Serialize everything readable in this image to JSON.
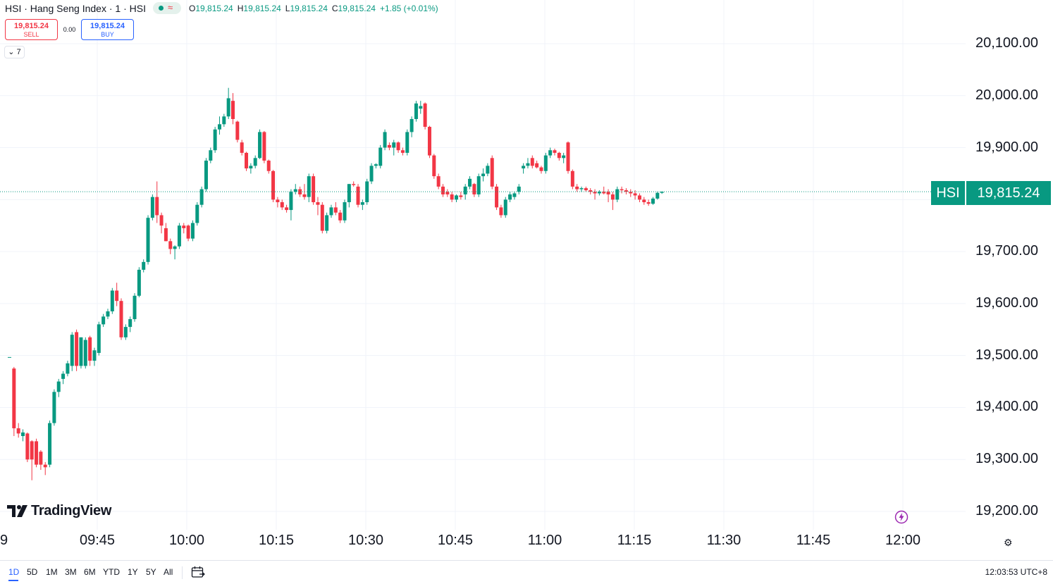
{
  "header": {
    "title": "HSI · Hang Seng Index · 1 · HSI",
    "status_approx": "≈",
    "ohlc": [
      {
        "key": "O",
        "value": "19,815.24"
      },
      {
        "key": "H",
        "value": "19,815.24"
      },
      {
        "key": "L",
        "value": "19,815.24"
      },
      {
        "key": "C",
        "value": "19,815.24"
      },
      {
        "key": "",
        "value": "+1.85 (+0.01%)"
      }
    ]
  },
  "trade": {
    "sell_price": "19,815.24",
    "sell_label": "SELL",
    "spread": "0.00",
    "buy_price": "19,815.24",
    "buy_label": "BUY"
  },
  "collapse_count": "7",
  "price_axis": [
    "20,100.00",
    "20,000.00",
    "19,900.00",
    "19,700.00",
    "19,600.00",
    "19,500.00",
    "19,400.00",
    "19,300.00",
    "19,200.00"
  ],
  "badge": {
    "symbol": "HSI",
    "value": "19,815.24"
  },
  "time_axis": [
    "09:45",
    "10:00",
    "10:15",
    "10:30",
    "10:45",
    "11:00",
    "11:15",
    "11:30",
    "11:45",
    "12:00"
  ],
  "partial_date": "9",
  "range_buttons": [
    "1D",
    "5D",
    "1M",
    "3M",
    "6M",
    "YTD",
    "1Y",
    "5Y",
    "All"
  ],
  "active_range": "1D",
  "clock": "12:03:53 UTC+8",
  "logo_text": "TradingView",
  "colors": {
    "up": "#089981",
    "down": "#f23645",
    "accent": "#2962ff"
  },
  "chart_data": {
    "type": "candlestick",
    "ylim": [
      19180,
      20130
    ],
    "x_start": "09:30",
    "x_end": "12:00",
    "last_price": 19815.24,
    "candles": [
      {
        "o": 19497,
        "h": 19497,
        "l": 19497,
        "c": 19497
      },
      {
        "o": 19475,
        "h": 19478,
        "l": 19345,
        "c": 19360
      },
      {
        "o": 19360,
        "h": 19370,
        "l": 19342,
        "c": 19350
      },
      {
        "o": 19345,
        "h": 19358,
        "l": 19335,
        "c": 19352
      },
      {
        "o": 19350,
        "h": 19352,
        "l": 19295,
        "c": 19300
      },
      {
        "o": 19335,
        "h": 19337,
        "l": 19260,
        "c": 19300
      },
      {
        "o": 19335,
        "h": 19340,
        "l": 19285,
        "c": 19290
      },
      {
        "o": 19315,
        "h": 19318,
        "l": 19280,
        "c": 19290
      },
      {
        "o": 19290,
        "h": 19295,
        "l": 19270,
        "c": 19285
      },
      {
        "o": 19290,
        "h": 19375,
        "l": 19285,
        "c": 19370
      },
      {
        "o": 19370,
        "h": 19435,
        "l": 19365,
        "c": 19430
      },
      {
        "o": 19430,
        "h": 19455,
        "l": 19420,
        "c": 19450
      },
      {
        "o": 19455,
        "h": 19470,
        "l": 19445,
        "c": 19465
      },
      {
        "o": 19465,
        "h": 19490,
        "l": 19460,
        "c": 19485
      },
      {
        "o": 19480,
        "h": 19545,
        "l": 19470,
        "c": 19540
      },
      {
        "o": 19545,
        "h": 19550,
        "l": 19470,
        "c": 19480
      },
      {
        "o": 19480,
        "h": 19535,
        "l": 19475,
        "c": 19535
      },
      {
        "o": 19480,
        "h": 19535,
        "l": 19475,
        "c": 19530
      },
      {
        "o": 19535,
        "h": 19538,
        "l": 19480,
        "c": 19490
      },
      {
        "o": 19490,
        "h": 19515,
        "l": 19480,
        "c": 19510
      },
      {
        "o": 19505,
        "h": 19565,
        "l": 19500,
        "c": 19560
      },
      {
        "o": 19560,
        "h": 19580,
        "l": 19555,
        "c": 19575
      },
      {
        "o": 19575,
        "h": 19590,
        "l": 19570,
        "c": 19585
      },
      {
        "o": 19585,
        "h": 19630,
        "l": 19580,
        "c": 19625
      },
      {
        "o": 19625,
        "h": 19640,
        "l": 19595,
        "c": 19605
      },
      {
        "o": 19605,
        "h": 19610,
        "l": 19530,
        "c": 19535
      },
      {
        "o": 19535,
        "h": 19560,
        "l": 19530,
        "c": 19555
      },
      {
        "o": 19555,
        "h": 19575,
        "l": 19545,
        "c": 19570
      },
      {
        "o": 19570,
        "h": 19620,
        "l": 19565,
        "c": 19615
      },
      {
        "o": 19615,
        "h": 19670,
        "l": 19612,
        "c": 19665
      },
      {
        "o": 19665,
        "h": 19685,
        "l": 19660,
        "c": 19680
      },
      {
        "o": 19680,
        "h": 19770,
        "l": 19675,
        "c": 19765
      },
      {
        "o": 19765,
        "h": 19810,
        "l": 19760,
        "c": 19805
      },
      {
        "o": 19805,
        "h": 19835,
        "l": 19755,
        "c": 19770
      },
      {
        "o": 19770,
        "h": 19775,
        "l": 19735,
        "c": 19750
      },
      {
        "o": 19745,
        "h": 19755,
        "l": 19720,
        "c": 19720
      },
      {
        "o": 19720,
        "h": 19725,
        "l": 19695,
        "c": 19705
      },
      {
        "o": 19705,
        "h": 19712,
        "l": 19685,
        "c": 19710
      },
      {
        "o": 19710,
        "h": 19755,
        "l": 19705,
        "c": 19750
      },
      {
        "o": 19750,
        "h": 19755,
        "l": 19735,
        "c": 19745
      },
      {
        "o": 19750,
        "h": 19752,
        "l": 19720,
        "c": 19725
      },
      {
        "o": 19725,
        "h": 19760,
        "l": 19720,
        "c": 19755
      },
      {
        "o": 19755,
        "h": 19795,
        "l": 19750,
        "c": 19790
      },
      {
        "o": 19790,
        "h": 19825,
        "l": 19785,
        "c": 19820
      },
      {
        "o": 19820,
        "h": 19880,
        "l": 19815,
        "c": 19875
      },
      {
        "o": 19875,
        "h": 19900,
        "l": 19870,
        "c": 19895
      },
      {
        "o": 19895,
        "h": 19940,
        "l": 19890,
        "c": 19935
      },
      {
        "o": 19935,
        "h": 19960,
        "l": 19925,
        "c": 19945
      },
      {
        "o": 19945,
        "h": 19965,
        "l": 19940,
        "c": 19960
      },
      {
        "o": 19960,
        "h": 20015,
        "l": 19955,
        "c": 19995
      },
      {
        "o": 19990,
        "h": 20005,
        "l": 19945,
        "c": 19955
      },
      {
        "o": 19950,
        "h": 19952,
        "l": 19910,
        "c": 19915
      },
      {
        "o": 19910,
        "h": 19915,
        "l": 19885,
        "c": 19890
      },
      {
        "o": 19890,
        "h": 19892,
        "l": 19855,
        "c": 19860
      },
      {
        "o": 19860,
        "h": 19870,
        "l": 19850,
        "c": 19865
      },
      {
        "o": 19865,
        "h": 19885,
        "l": 19860,
        "c": 19880
      },
      {
        "o": 19880,
        "h": 19935,
        "l": 19878,
        "c": 19930
      },
      {
        "o": 19930,
        "h": 19932,
        "l": 19870,
        "c": 19875
      },
      {
        "o": 19875,
        "h": 19877,
        "l": 19850,
        "c": 19855
      },
      {
        "o": 19855,
        "h": 19857,
        "l": 19795,
        "c": 19800
      },
      {
        "o": 19800,
        "h": 19805,
        "l": 19785,
        "c": 19795
      },
      {
        "o": 19795,
        "h": 19800,
        "l": 19780,
        "c": 19785
      },
      {
        "o": 19785,
        "h": 19790,
        "l": 19775,
        "c": 19780
      },
      {
        "o": 19780,
        "h": 19820,
        "l": 19760,
        "c": 19815
      },
      {
        "o": 19815,
        "h": 19830,
        "l": 19810,
        "c": 19820
      },
      {
        "o": 19820,
        "h": 19825,
        "l": 19805,
        "c": 19810
      },
      {
        "o": 19810,
        "h": 19830,
        "l": 19800,
        "c": 19805
      },
      {
        "o": 19805,
        "h": 19850,
        "l": 19795,
        "c": 19845
      },
      {
        "o": 19845,
        "h": 19850,
        "l": 19790,
        "c": 19795
      },
      {
        "o": 19795,
        "h": 19805,
        "l": 19770,
        "c": 19790
      },
      {
        "o": 19790,
        "h": 19795,
        "l": 19735,
        "c": 19740
      },
      {
        "o": 19740,
        "h": 19775,
        "l": 19735,
        "c": 19770
      },
      {
        "o": 19770,
        "h": 19790,
        "l": 19765,
        "c": 19785
      },
      {
        "o": 19785,
        "h": 19795,
        "l": 19770,
        "c": 19775
      },
      {
        "o": 19775,
        "h": 19780,
        "l": 19755,
        "c": 19760
      },
      {
        "o": 19760,
        "h": 19800,
        "l": 19755,
        "c": 19795
      },
      {
        "o": 19795,
        "h": 19830,
        "l": 19785,
        "c": 19830
      },
      {
        "o": 19830,
        "h": 19835,
        "l": 19825,
        "c": 19828
      },
      {
        "o": 19825,
        "h": 19830,
        "l": 19785,
        "c": 19790
      },
      {
        "o": 19790,
        "h": 19800,
        "l": 19780,
        "c": 19795
      },
      {
        "o": 19795,
        "h": 19840,
        "l": 19790,
        "c": 19835
      },
      {
        "o": 19835,
        "h": 19870,
        "l": 19830,
        "c": 19865
      },
      {
        "o": 19865,
        "h": 19870,
        "l": 19860,
        "c": 19868
      },
      {
        "o": 19865,
        "h": 19905,
        "l": 19860,
        "c": 19900
      },
      {
        "o": 19900,
        "h": 19935,
        "l": 19895,
        "c": 19930
      },
      {
        "o": 19905,
        "h": 19910,
        "l": 19895,
        "c": 19900
      },
      {
        "o": 19900,
        "h": 19915,
        "l": 19885,
        "c": 19910
      },
      {
        "o": 19910,
        "h": 19912,
        "l": 19890,
        "c": 19895
      },
      {
        "o": 19895,
        "h": 19900,
        "l": 19885,
        "c": 19890
      },
      {
        "o": 19890,
        "h": 19935,
        "l": 19885,
        "c": 19930
      },
      {
        "o": 19930,
        "h": 19960,
        "l": 19920,
        "c": 19955
      },
      {
        "o": 19955,
        "h": 19990,
        "l": 19950,
        "c": 19985
      },
      {
        "o": 19975,
        "h": 19990,
        "l": 19965,
        "c": 19980
      },
      {
        "o": 19985,
        "h": 19987,
        "l": 19935,
        "c": 19940
      },
      {
        "o": 19940,
        "h": 19942,
        "l": 19880,
        "c": 19885
      },
      {
        "o": 19885,
        "h": 19888,
        "l": 19840,
        "c": 19845
      },
      {
        "o": 19845,
        "h": 19850,
        "l": 19820,
        "c": 19825
      },
      {
        "o": 19825,
        "h": 19830,
        "l": 19805,
        "c": 19810
      },
      {
        "o": 19815,
        "h": 19820,
        "l": 19805,
        "c": 19810
      },
      {
        "o": 19810,
        "h": 19815,
        "l": 19795,
        "c": 19800
      },
      {
        "o": 19800,
        "h": 19810,
        "l": 19795,
        "c": 19808
      },
      {
        "o": 19808,
        "h": 19815,
        "l": 19800,
        "c": 19805
      },
      {
        "o": 19810,
        "h": 19830,
        "l": 19800,
        "c": 19825
      },
      {
        "o": 19825,
        "h": 19845,
        "l": 19820,
        "c": 19840
      },
      {
        "o": 19830,
        "h": 19832,
        "l": 19805,
        "c": 19810
      },
      {
        "o": 19810,
        "h": 19850,
        "l": 19805,
        "c": 19845
      },
      {
        "o": 19845,
        "h": 19860,
        "l": 19835,
        "c": 19850
      },
      {
        "o": 19850,
        "h": 19870,
        "l": 19845,
        "c": 19865
      },
      {
        "o": 19880,
        "h": 19885,
        "l": 19820,
        "c": 19825
      },
      {
        "o": 19825,
        "h": 19830,
        "l": 19780,
        "c": 19785
      },
      {
        "o": 19785,
        "h": 19790,
        "l": 19765,
        "c": 19770
      },
      {
        "o": 19770,
        "h": 19805,
        "l": 19765,
        "c": 19800
      },
      {
        "o": 19800,
        "h": 19815,
        "l": 19795,
        "c": 19810
      },
      {
        "o": 19805,
        "h": 19815,
        "l": 19800,
        "c": 19812
      },
      {
        "o": 19815,
        "h": 19830,
        "l": 19810,
        "c": 19825
      },
      {
        "o": 19860,
        "h": 19870,
        "l": 19850,
        "c": 19865
      },
      {
        "o": 19865,
        "h": 19880,
        "l": 19860,
        "c": 19870
      },
      {
        "o": 19880,
        "h": 19885,
        "l": 19860,
        "c": 19865
      },
      {
        "o": 19870,
        "h": 19875,
        "l": 19860,
        "c": 19862
      },
      {
        "o": 19862,
        "h": 19865,
        "l": 19850,
        "c": 19855
      },
      {
        "o": 19855,
        "h": 19890,
        "l": 19850,
        "c": 19885
      },
      {
        "o": 19885,
        "h": 19900,
        "l": 19880,
        "c": 19895
      },
      {
        "o": 19895,
        "h": 19898,
        "l": 19885,
        "c": 19890
      },
      {
        "o": 19890,
        "h": 19892,
        "l": 19875,
        "c": 19880
      },
      {
        "o": 19880,
        "h": 19890,
        "l": 19870,
        "c": 19885
      },
      {
        "o": 19910,
        "h": 19912,
        "l": 19850,
        "c": 19855
      },
      {
        "o": 19855,
        "h": 19858,
        "l": 19820,
        "c": 19825
      },
      {
        "o": 19825,
        "h": 19830,
        "l": 19815,
        "c": 19820
      },
      {
        "o": 19820,
        "h": 19825,
        "l": 19815,
        "c": 19822
      },
      {
        "o": 19822,
        "h": 19825,
        "l": 19815,
        "c": 19818
      },
      {
        "o": 19818,
        "h": 19822,
        "l": 19810,
        "c": 19815
      },
      {
        "o": 19815,
        "h": 19820,
        "l": 19800,
        "c": 19812
      },
      {
        "o": 19812,
        "h": 19818,
        "l": 19808,
        "c": 19815
      },
      {
        "o": 19815,
        "h": 19825,
        "l": 19810,
        "c": 19812
      },
      {
        "o": 19815,
        "h": 19820,
        "l": 19795,
        "c": 19810
      },
      {
        "o": 19810,
        "h": 19815,
        "l": 19780,
        "c": 19800
      },
      {
        "o": 19800,
        "h": 19825,
        "l": 19795,
        "c": 19820
      },
      {
        "o": 19820,
        "h": 19825,
        "l": 19812,
        "c": 19818
      },
      {
        "o": 19818,
        "h": 19822,
        "l": 19810,
        "c": 19815
      },
      {
        "o": 19815,
        "h": 19820,
        "l": 19805,
        "c": 19812
      },
      {
        "o": 19812,
        "h": 19818,
        "l": 19800,
        "c": 19808
      },
      {
        "o": 19808,
        "h": 19812,
        "l": 19795,
        "c": 19800
      },
      {
        "o": 19800,
        "h": 19805,
        "l": 19790,
        "c": 19795
      },
      {
        "o": 19795,
        "h": 19800,
        "l": 19788,
        "c": 19792
      },
      {
        "o": 19792,
        "h": 19805,
        "l": 19790,
        "c": 19802
      },
      {
        "o": 19802,
        "h": 19815,
        "l": 19800,
        "c": 19813
      },
      {
        "o": 19813,
        "h": 19816,
        "l": 19811,
        "c": 19815
      }
    ]
  }
}
